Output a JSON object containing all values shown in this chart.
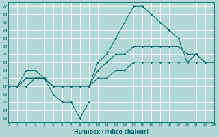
{
  "background_color": "#b2d8d8",
  "grid_color": "#ffffff",
  "line_color": "#006666",
  "xlabel": "Humidex (Indice chaleur)",
  "ylim": [
    13,
    27
  ],
  "xlim": [
    0,
    23
  ],
  "yticks": [
    13,
    14,
    15,
    16,
    17,
    18,
    19,
    20,
    21,
    22,
    23,
    24,
    25,
    26,
    27
  ],
  "xticks": [
    0,
    1,
    2,
    3,
    4,
    5,
    6,
    7,
    8,
    9,
    10,
    11,
    12,
    13,
    14,
    15,
    16,
    17,
    18,
    19,
    20,
    21,
    22,
    23
  ],
  "series": [
    {
      "x": [
        0,
        1,
        2,
        3,
        4,
        5,
        6,
        7,
        8,
        9
      ],
      "y": [
        17,
        17,
        17,
        18,
        18,
        16,
        15,
        15,
        13,
        15
      ]
    },
    {
      "x": [
        0,
        1,
        2,
        3,
        4,
        5,
        6,
        7,
        8,
        9,
        10,
        11,
        12,
        13,
        14,
        15,
        16,
        17,
        18,
        19,
        20,
        21,
        22,
        23
      ],
      "y": [
        17,
        17,
        19,
        19,
        18,
        17,
        17,
        17,
        17,
        17,
        20,
        21,
        23,
        25,
        27,
        27,
        26,
        25,
        24,
        23,
        20,
        21,
        20,
        20
      ]
    },
    {
      "x": [
        0,
        1,
        2,
        3,
        4,
        5,
        6,
        7,
        8,
        9,
        10,
        11,
        12,
        13,
        14,
        15,
        16,
        17,
        18,
        19,
        20,
        21,
        22,
        23
      ],
      "y": [
        17,
        17,
        18,
        18,
        18,
        17,
        17,
        17,
        17,
        17,
        19,
        20,
        21,
        21,
        22,
        22,
        22,
        22,
        22,
        22,
        21,
        21,
        20,
        20
      ]
    },
    {
      "x": [
        0,
        1,
        2,
        3,
        4,
        5,
        6,
        7,
        8,
        9,
        10,
        11,
        12,
        13,
        14,
        15,
        16,
        17,
        18,
        19,
        20,
        21,
        22,
        23
      ],
      "y": [
        17,
        17,
        18,
        18,
        18,
        17,
        17,
        17,
        17,
        17,
        18,
        18,
        19,
        19,
        20,
        20,
        20,
        20,
        20,
        20,
        20,
        20,
        20,
        20
      ]
    }
  ]
}
